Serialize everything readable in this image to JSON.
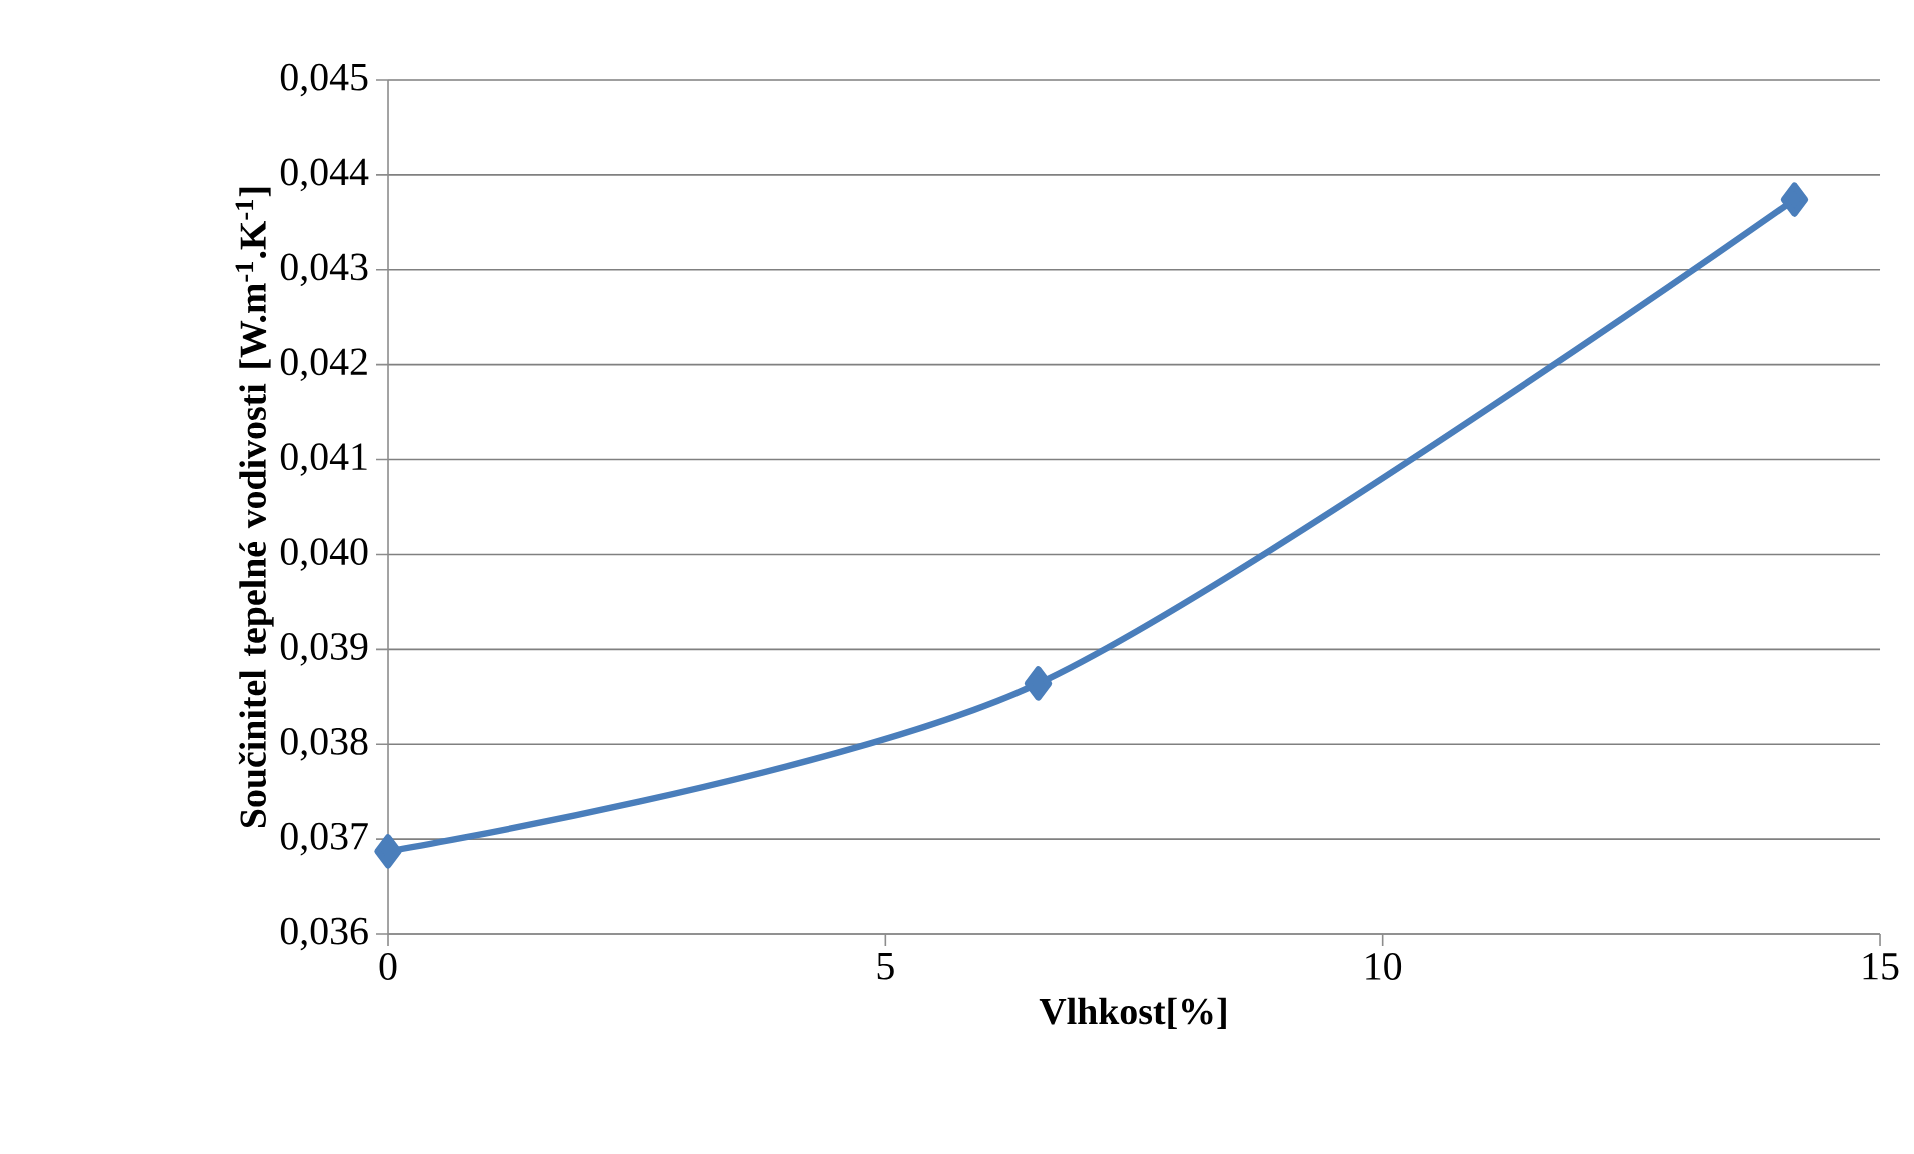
{
  "chart_data": {
    "type": "line",
    "xlabel": "Vlhkost[%]",
    "ylabel": "Součinitel tepelné vodivosti [W.m$^{-1}$.K$^{-1}$]",
    "x": [
      0,
      6.54,
      14.14
    ],
    "series": [
      {
        "color": "#4a7ebb",
        "values": [
          0.03687,
          0.03864,
          0.04374
        ]
      }
    ],
    "xlim": [
      0,
      15
    ],
    "xticks": [
      0,
      5,
      10,
      15
    ],
    "ylim": [
      0.036,
      0.045
    ],
    "yticks": [
      {
        "value": 0.036,
        "label": "0,036"
      },
      {
        "value": 0.037,
        "label": "0,037"
      },
      {
        "value": 0.038,
        "label": "0,038"
      },
      {
        "value": 0.039,
        "label": "0,039"
      },
      {
        "value": 0.04,
        "label": "0,040"
      },
      {
        "value": 0.041,
        "label": "0,041"
      },
      {
        "value": 0.042,
        "label": "0,042"
      },
      {
        "value": 0.043,
        "label": "0,043"
      },
      {
        "value": 0.044,
        "label": "0,044"
      },
      {
        "value": 0.045,
        "label": "0,045"
      }
    ],
    "grid": "y",
    "marker": "diamond",
    "line_style": "solid"
  }
}
